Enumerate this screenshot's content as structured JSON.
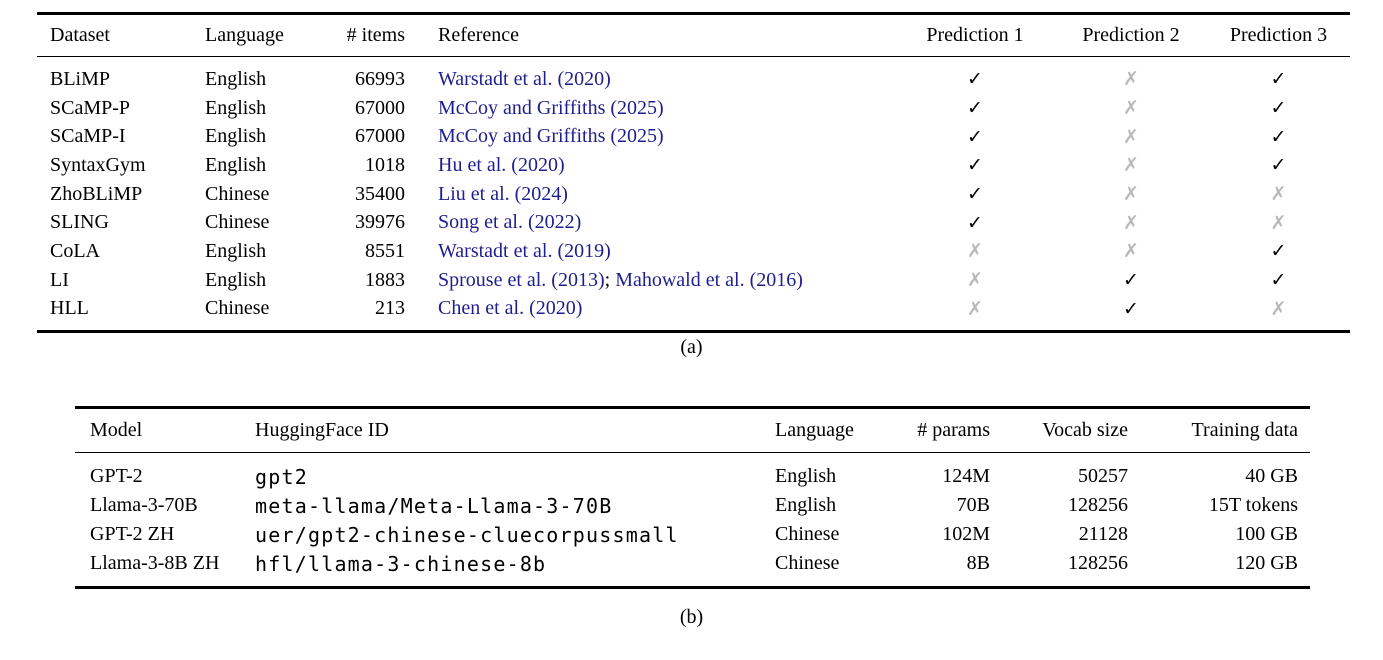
{
  "colors": {
    "cite": "#1e1e8f",
    "check": "#000000",
    "cross": "#b9b9b9",
    "rule": "#000000"
  },
  "marks": {
    "check": "✓",
    "cross": "✗"
  },
  "figure_a": {
    "caption": "(a)",
    "columns": [
      "Dataset",
      "Language",
      "# items",
      "Reference",
      "Prediction 1",
      "Prediction 2",
      "Prediction 3"
    ],
    "rows": [
      {
        "dataset": "BLiMP",
        "language": "English",
        "items": "66993",
        "reference": [
          {
            "text": "Warstadt et al. (2020)",
            "cite": true
          }
        ],
        "predictions": [
          "check",
          "cross",
          "check"
        ]
      },
      {
        "dataset": "SCaMP-P",
        "language": "English",
        "items": "67000",
        "reference": [
          {
            "text": "McCoy and Griffiths (2025)",
            "cite": true
          }
        ],
        "predictions": [
          "check",
          "cross",
          "check"
        ]
      },
      {
        "dataset": "SCaMP-I",
        "language": "English",
        "items": "67000",
        "reference": [
          {
            "text": "McCoy and Griffiths (2025)",
            "cite": true
          }
        ],
        "predictions": [
          "check",
          "cross",
          "check"
        ]
      },
      {
        "dataset": "SyntaxGym",
        "language": "English",
        "items": "1018",
        "reference": [
          {
            "text": "Hu et al. (2020)",
            "cite": true
          }
        ],
        "predictions": [
          "check",
          "cross",
          "check"
        ]
      },
      {
        "dataset": "ZhoBLiMP",
        "language": "Chinese",
        "items": "35400",
        "reference": [
          {
            "text": "Liu et al. (2024)",
            "cite": true
          }
        ],
        "predictions": [
          "check",
          "cross",
          "cross"
        ]
      },
      {
        "dataset": "SLING",
        "language": "Chinese",
        "items": "39976",
        "reference": [
          {
            "text": "Song et al. (2022)",
            "cite": true
          }
        ],
        "predictions": [
          "check",
          "cross",
          "cross"
        ]
      },
      {
        "dataset": "CoLA",
        "language": "English",
        "items": "8551",
        "reference": [
          {
            "text": "Warstadt et al. (2019)",
            "cite": true
          }
        ],
        "predictions": [
          "cross",
          "cross",
          "check"
        ]
      },
      {
        "dataset": "LI",
        "language": "English",
        "items": "1883",
        "reference": [
          {
            "text": "Sprouse et al. (2013)",
            "cite": true
          },
          {
            "text": "; ",
            "cite": false
          },
          {
            "text": "Mahowald et al. (2016)",
            "cite": true
          }
        ],
        "predictions": [
          "cross",
          "check",
          "check"
        ]
      },
      {
        "dataset": "HLL",
        "language": "Chinese",
        "items": "213",
        "reference": [
          {
            "text": "Chen et al. (2020)",
            "cite": true
          }
        ],
        "predictions": [
          "cross",
          "check",
          "cross"
        ]
      }
    ]
  },
  "figure_b": {
    "caption": "(b)",
    "columns": [
      "Model",
      "HuggingFace ID",
      "Language",
      "# params",
      "Vocab size",
      "Training data"
    ],
    "rows": [
      {
        "model": "GPT-2",
        "hf_id": "gpt2",
        "language": "English",
        "params": "124M",
        "vocab": "50257",
        "training": "40 GB"
      },
      {
        "model": "Llama-3-70B",
        "hf_id": "meta-llama/Meta-Llama-3-70B",
        "language": "English",
        "params": "70B",
        "vocab": "128256",
        "training": "15T tokens"
      },
      {
        "model": "GPT-2 ZH",
        "hf_id": "uer/gpt2-chinese-cluecorpussmall",
        "language": "Chinese",
        "params": "102M",
        "vocab": "21128",
        "training": "100 GB"
      },
      {
        "model": "Llama-3-8B ZH",
        "hf_id": "hfl/llama-3-chinese-8b",
        "language": "Chinese",
        "params": "8B",
        "vocab": "128256",
        "training": "120 GB"
      }
    ]
  }
}
